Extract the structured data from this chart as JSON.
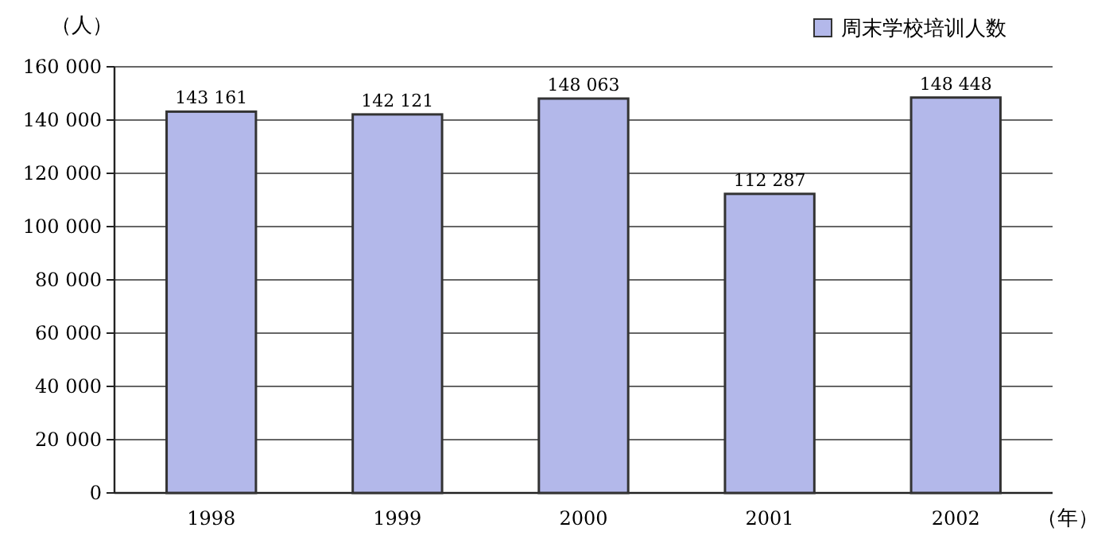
{
  "chart_data": {
    "type": "bar",
    "ylabel": "（人）",
    "xlabel": "（年）",
    "categories": [
      "1998",
      "1999",
      "2000",
      "2001",
      "2002"
    ],
    "series": [
      {
        "name": "周末学校培训人数",
        "color": "#b3b8ea",
        "values": [
          143161,
          142121,
          148063,
          112287,
          148448
        ],
        "value_labels": [
          "143 161",
          "142 121",
          "148 063",
          "112 287",
          "148 448"
        ]
      }
    ],
    "ylim": [
      0,
      160000
    ],
    "yticks": [
      {
        "value": 0,
        "label": "0"
      },
      {
        "value": 20000,
        "label": "20 000"
      },
      {
        "value": 40000,
        "label": "40 000"
      },
      {
        "value": 60000,
        "label": "60 000"
      },
      {
        "value": 80000,
        "label": "80 000"
      },
      {
        "value": 100000,
        "label": "100 000"
      },
      {
        "value": 120000,
        "label": "120 000"
      },
      {
        "value": 140000,
        "label": "140 000"
      },
      {
        "value": 160000,
        "label": "160 000"
      }
    ],
    "grid": "y",
    "legend": "top right"
  }
}
